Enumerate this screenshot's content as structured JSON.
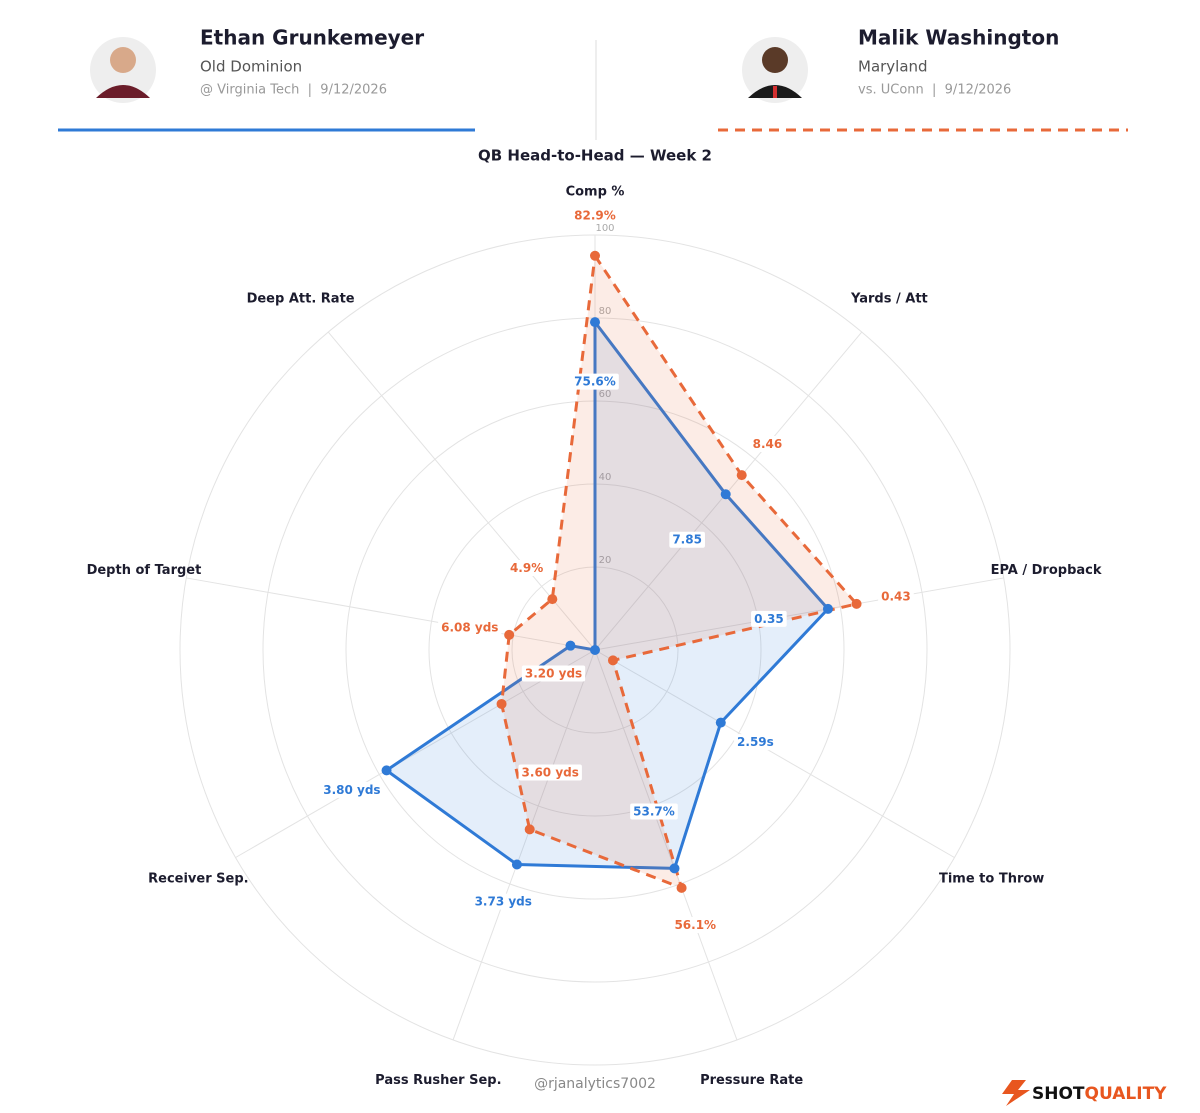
{
  "chart_data": {
    "type": "radar",
    "title": "QB Head-to-Head — Week 2",
    "axes": [
      "Comp %",
      "Yards / Att",
      "EPA / Dropback",
      "Time to Throw",
      "Pressure Rate",
      "Pass Rusher Sep.",
      "Receiver Sep.",
      "Depth of Target",
      "Deep Att. Rate"
    ],
    "rlim": [
      0,
      100
    ],
    "rticks": [
      20,
      40,
      60,
      80,
      100
    ],
    "grid": true,
    "series": [
      {
        "name": "Ethan Grunkemeyer",
        "color": "#2f7ad6",
        "dashed": false,
        "values": [
          79,
          49,
          57,
          35,
          56,
          55,
          58,
          6,
          0
        ],
        "labels": [
          "75.6%",
          "7.85",
          "0.35",
          "2.59s",
          "53.7%",
          "3.73 yds",
          "3.80 yds",
          null,
          null
        ]
      },
      {
        "name": "Malik Washington",
        "color": "#e8693a",
        "dashed": true,
        "values": [
          95,
          55,
          64,
          5,
          61,
          46,
          26,
          21,
          16
        ],
        "labels": [
          "82.9%",
          "8.46",
          "0.43",
          null,
          "56.1%",
          "3.60 yds",
          "3.20 yds",
          "6.08 yds",
          "4.9%"
        ]
      }
    ]
  },
  "players": [
    {
      "team": "Old Dominion",
      "game": "@ Virginia Tech  |  9/12/2026"
    },
    {
      "team": "Maryland",
      "game": "vs. UConn  |  9/12/2026"
    }
  ],
  "footer": "@rjanalytics7002",
  "brand": [
    "SHOT",
    "QUALITY"
  ]
}
